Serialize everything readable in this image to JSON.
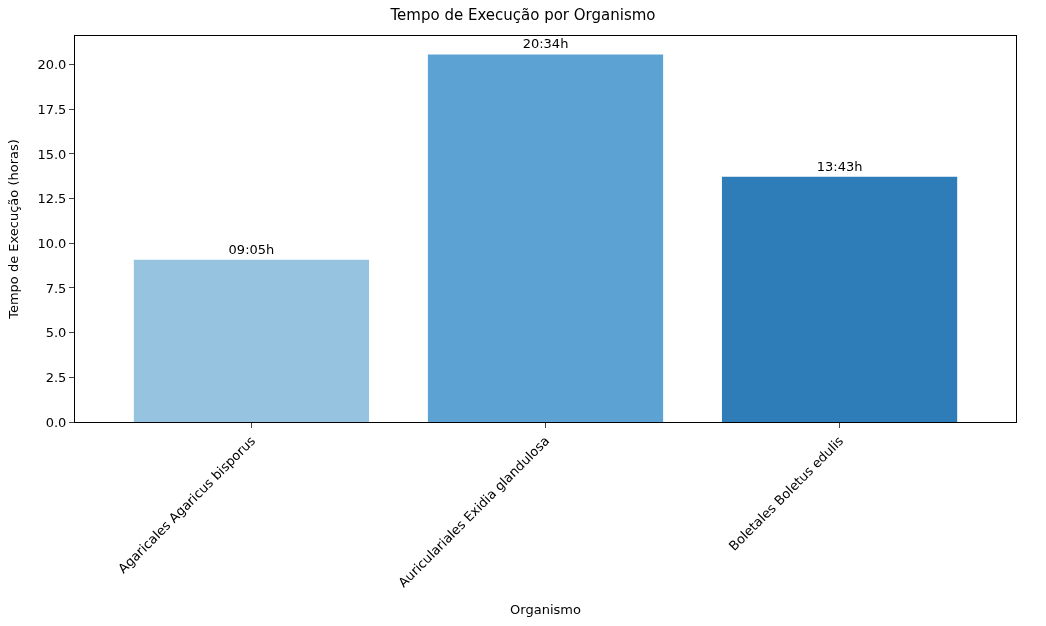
{
  "chart_data": {
    "type": "bar",
    "title": "Tempo de Execução por Organismo",
    "xlabel": "Organismo",
    "ylabel": "Tempo de Execução (horas)",
    "categories": [
      "Agaricales Agaricus bisporus",
      "Auriculariales Exidia glandulosa",
      "Boletales Boletus edulis"
    ],
    "values": [
      9.083,
      20.567,
      13.717
    ],
    "value_labels": [
      "09:05h",
      "20:34h",
      "13:43h"
    ],
    "colors": [
      "#96c3e0",
      "#5ca2d2",
      "#2e7db9"
    ],
    "ylim": [
      0,
      21.6
    ],
    "yticks": [
      {
        "value": 0,
        "label": "0.0"
      },
      {
        "value": 2.5,
        "label": "2.5"
      },
      {
        "value": 5,
        "label": "5.0"
      },
      {
        "value": 7.5,
        "label": "7.5"
      },
      {
        "value": 10,
        "label": "10.0"
      },
      {
        "value": 12.5,
        "label": "12.5"
      },
      {
        "value": 15,
        "label": "15.0"
      },
      {
        "value": 17.5,
        "label": "17.5"
      },
      {
        "value": 20,
        "label": "20.0"
      }
    ],
    "legend": false
  }
}
